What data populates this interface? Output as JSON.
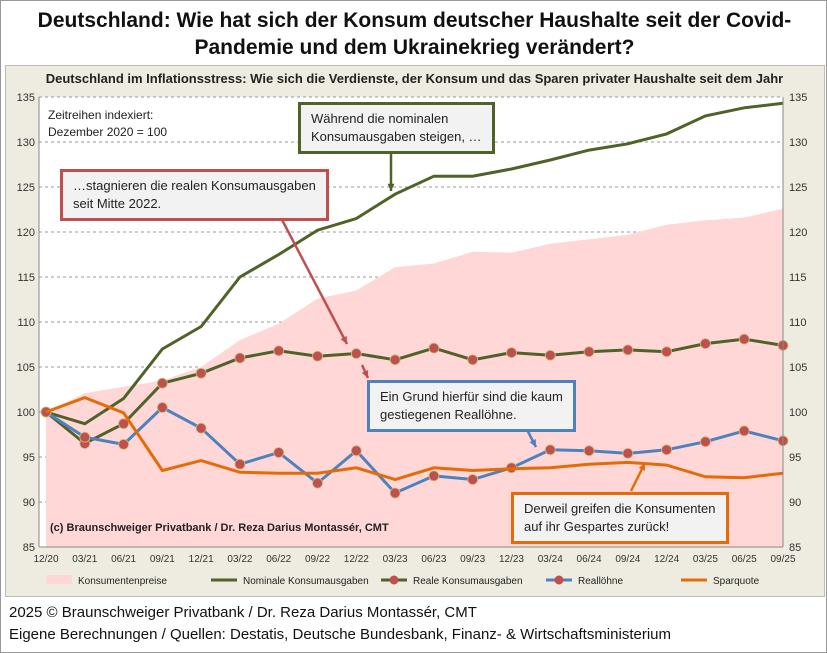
{
  "title": "Deutschland: Wie hat sich der Konsum deutscher Haushalte seit der Covid-Pandemie und dem Ukrainekrieg verändert?",
  "footer": {
    "line1": "2025 © Braunschweiger Privatbank / Dr. Reza Darius Montassér, CMT",
    "line2": "Eigene Berechnungen / Quellen: Destatis, Deutsche Bundesbank, Finanz- & Wirtschaftsministerium"
  },
  "chart_data": {
    "type": "line",
    "title": "Deutschland im Inflationsstress: Wie sich die Verdienste, der Konsum und das Sparen privater Haushalte seit dem Jahr",
    "index_note": [
      "Zeitreihen indexiert:",
      "Dezember 2020 = 100"
    ],
    "copyright": "(c) Braunschweiger Privatbank / Dr. Reza Darius Montassér, CMT",
    "categories": [
      "12/20",
      "03/21",
      "06/21",
      "09/21",
      "12/21",
      "03/22",
      "06/22",
      "09/22",
      "12/22",
      "03/23",
      "06/23",
      "09/23",
      "12/23",
      "03/24",
      "06/24",
      "09/24",
      "12/24",
      "03/25",
      "06/25",
      "09/25"
    ],
    "ylim": [
      85,
      135
    ],
    "yticks": [
      85,
      90,
      95,
      100,
      105,
      110,
      115,
      120,
      125,
      130,
      135
    ],
    "grid": true,
    "legend": "bottom",
    "series": [
      {
        "name": "Konsumentenpreise",
        "kind": "area",
        "color": "#FFD7D7",
        "values": [
          100,
          102.1,
          102.8,
          103.5,
          105,
          108,
          109.8,
          112.6,
          113.5,
          116.1,
          116.5,
          117.8,
          117.7,
          118.7,
          119.2,
          119.7,
          120.8,
          121.3,
          121.6,
          122.6
        ]
      },
      {
        "name": "Nominale Konsumausgaben",
        "kind": "line",
        "color": "#4F6228",
        "values": [
          100,
          98.7,
          101.5,
          107,
          109.5,
          115,
          117.5,
          120.2,
          121.5,
          124.2,
          126.2,
          126.2,
          127,
          128,
          129.1,
          129.8,
          130.9,
          132.9,
          133.8,
          134.3
        ]
      },
      {
        "name": "Reale Konsumausgaben",
        "kind": "line-marker",
        "color": "#4F6228",
        "marker": "#C0504D",
        "values": [
          100,
          96.5,
          98.7,
          103.2,
          104.3,
          106,
          106.8,
          106.2,
          106.5,
          105.8,
          107.1,
          105.8,
          106.6,
          106.3,
          106.7,
          106.9,
          106.7,
          107.6,
          108.1,
          107.4
        ]
      },
      {
        "name": "Reallöhne",
        "kind": "line-marker",
        "color": "#4F81BD",
        "marker": "#C0504D",
        "values": [
          100,
          97.2,
          96.4,
          100.5,
          98.2,
          94.2,
          95.5,
          92.1,
          95.7,
          91.0,
          92.9,
          92.5,
          93.8,
          95.8,
          95.7,
          95.4,
          95.8,
          96.7,
          97.9,
          96.8
        ]
      },
      {
        "name": "Sparquote",
        "kind": "line",
        "color": "#E36C09",
        "values": [
          100,
          101.6,
          99.9,
          93.5,
          94.6,
          93.3,
          93.2,
          93.2,
          93.8,
          92.5,
          93.8,
          93.5,
          93.7,
          93.8,
          94.2,
          94.4,
          94.1,
          92.8,
          92.7,
          93.2
        ]
      }
    ],
    "annotations": [
      {
        "text1": "Während die nominalen",
        "text2": "Konsumausgaben steigen, …",
        "color": "#4F6228"
      },
      {
        "text1": "…stagnieren die realen Konsumausgaben",
        "text2": "seit Mitte 2022.",
        "color": "#C0504D"
      },
      {
        "text1": "Ein Grund hierfür sind die kaum",
        "text2": "gestiegenen Reallöhne.",
        "color": "#4F81BD"
      },
      {
        "text1": "Derweil greifen die Konsumenten",
        "text2": "auf ihr Gespartes zurück!",
        "color": "#E36C09"
      }
    ]
  }
}
